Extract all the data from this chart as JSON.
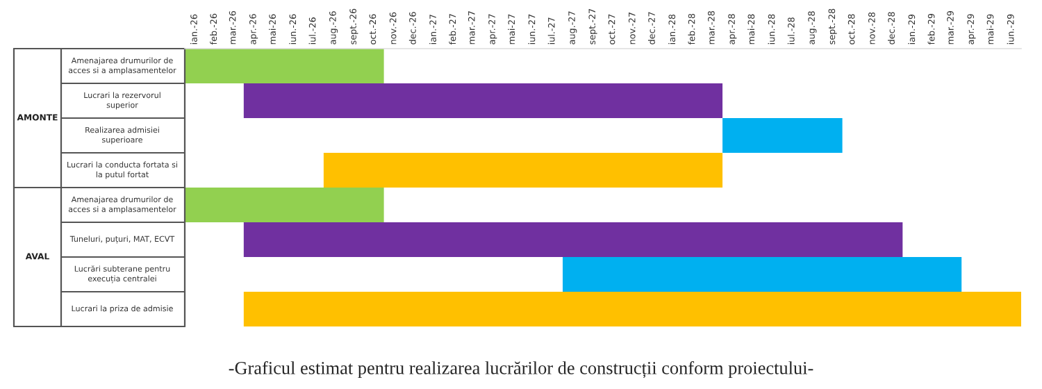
{
  "chart_data": {
    "type": "bar",
    "orientation": "horizontal",
    "title": "-Graficul estimat pentru realizarea lucrărilor de construcții conform proiectului-",
    "categories": [
      "Amenajarea drumurilor de\nacces si a amplasamentelor",
      "Lucrari la rezervorul\nsuperior",
      "Realizarea admisiei\nsuperioare",
      "Lucrari la conducta fortata si\nla putul fortat",
      "Amenajarea drumurilor de\nacces si a amplasamentelor",
      "Tuneluri, puțuri, MAT, ECVT",
      "Lucrări subterane pentru\nexecuția centralei",
      "Lucrari la priza de admisie"
    ],
    "base": [
      20454,
      20544,
      21275,
      20666,
      20454,
      20544,
      21031,
      20544
    ],
    "values": [
      304,
      731,
      183,
      609,
      304,
      1006,
      609,
      1187
    ],
    "colors": [
      "#92d050",
      "#7030a0",
      "#00b0f0",
      "#ffc000",
      "#92d050",
      "#7030a0",
      "#00b0f0",
      "#ffc000"
    ],
    "annotations": [
      "AMONTE",
      "AVAL"
    ],
    "xlim": [
      "2026-01-01",
      "2029-07-01"
    ],
    "xticks": [
      {
        "value": "2026-01-16",
        "label": "ian.-26"
      },
      {
        "value": "2026-02-15",
        "label": "feb.-26"
      },
      {
        "value": "2026-03-16",
        "label": "mar.-26"
      },
      {
        "value": "2026-04-16",
        "label": "apr.-26"
      },
      {
        "value": "2026-05-16",
        "label": "mai-26"
      },
      {
        "value": "2026-06-16",
        "label": "iun.-26"
      },
      {
        "value": "2026-07-16",
        "label": "iul.-26"
      },
      {
        "value": "2026-08-16",
        "label": "aug.-26"
      },
      {
        "value": "2026-09-16",
        "label": "sept.-26"
      },
      {
        "value": "2026-10-16",
        "label": "oct.-26"
      },
      {
        "value": "2026-11-16",
        "label": "nov.-26"
      },
      {
        "value": "2026-12-16",
        "label": "dec.-26"
      },
      {
        "value": "2027-01-16",
        "label": "ian.-27"
      },
      {
        "value": "2027-02-15",
        "label": "feb.-27"
      },
      {
        "value": "2027-03-16",
        "label": "mar.-27"
      },
      {
        "value": "2027-04-16",
        "label": "apr.-27"
      },
      {
        "value": "2027-05-16",
        "label": "mai-27"
      },
      {
        "value": "2027-06-16",
        "label": "iun.-27"
      },
      {
        "value": "2027-07-16",
        "label": "iul.-27"
      },
      {
        "value": "2027-08-16",
        "label": "aug.-27"
      },
      {
        "value": "2027-09-16",
        "label": "sept.-27"
      },
      {
        "value": "2027-10-16",
        "label": "oct.-27"
      },
      {
        "value": "2027-11-16",
        "label": "nov.-27"
      },
      {
        "value": "2027-12-16",
        "label": "dec.-27"
      },
      {
        "value": "2028-01-16",
        "label": "ian.-28"
      },
      {
        "value": "2028-02-15",
        "label": "feb.-28"
      },
      {
        "value": "2028-03-16",
        "label": "mar.-28"
      },
      {
        "value": "2028-04-16",
        "label": "apr.-28"
      },
      {
        "value": "2028-05-16",
        "label": "mai-28"
      },
      {
        "value": "2028-06-16",
        "label": "iun.-28"
      },
      {
        "value": "2028-07-16",
        "label": "iul.-28"
      },
      {
        "value": "2028-08-16",
        "label": "aug.-28"
      },
      {
        "value": "2028-09-16",
        "label": "sept.-28"
      },
      {
        "value": "2028-10-16",
        "label": "oct.-28"
      },
      {
        "value": "2028-11-16",
        "label": "nov.-28"
      },
      {
        "value": "2028-12-16",
        "label": "dec.-28"
      },
      {
        "value": "2029-01-16",
        "label": "ian.-29"
      },
      {
        "value": "2029-02-15",
        "label": "feb.-29"
      },
      {
        "value": "2029-03-16",
        "label": "mar.-29"
      },
      {
        "value": "2029-04-16",
        "label": "apr.-29"
      },
      {
        "value": "2029-05-16",
        "label": "mai-29"
      },
      {
        "value": "2029-06-16",
        "label": "iun.-29"
      }
    ]
  }
}
